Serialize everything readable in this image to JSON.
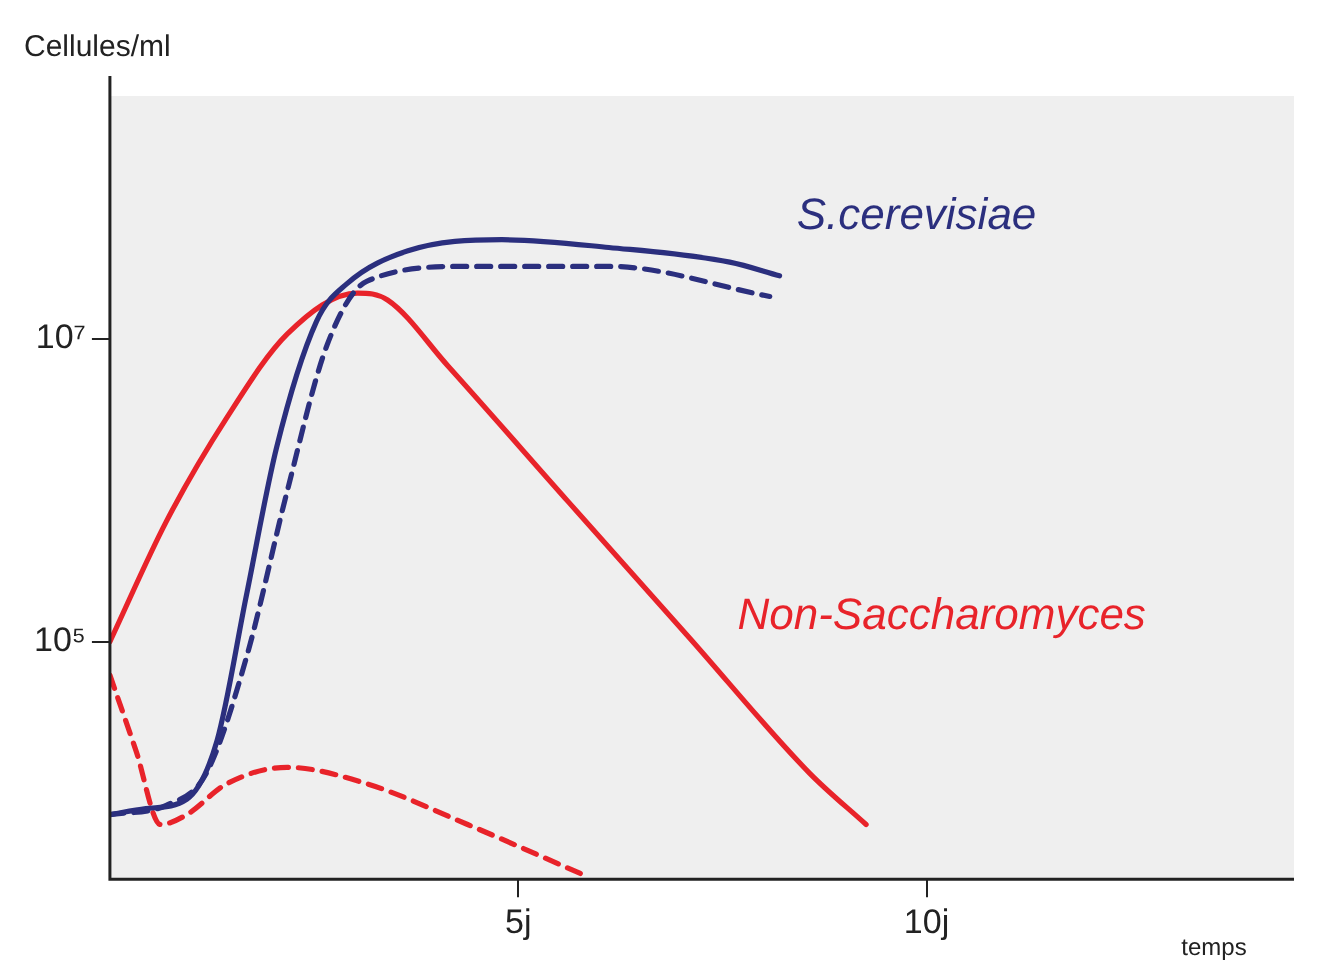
{
  "chart_data": {
    "type": "line",
    "ylabel": "Cellules/ml",
    "xlabel": "temps",
    "log": "y",
    "xlim": [
      0,
      14.5
    ],
    "ylim": [
      2700,
      400000000
    ],
    "xticks": [
      {
        "value": 5,
        "label": "5j"
      },
      {
        "value": 10,
        "label": "10j"
      }
    ],
    "yticks": [
      {
        "value": 100000,
        "label": "10⁵"
      },
      {
        "value": 10000000,
        "label": "10⁷"
      }
    ],
    "grid": false,
    "legend": false,
    "marker": "none",
    "series": [
      {
        "name": "S.cerevisiae",
        "color": "#2b2f7e",
        "line_style": "solid",
        "x": [
          0,
          0.44,
          0.94,
          1.31,
          1.67,
          2.04,
          2.53,
          2.9,
          3.65,
          4.8,
          6.11,
          7.59,
          8.2
        ],
        "values": [
          7200,
          7900,
          9100,
          22000,
          200000,
          1900000,
          13000000,
          23000000,
          38000000,
          45000000,
          40000000,
          32000000,
          26000000
        ]
      },
      {
        "color": "#2b2f7e",
        "line_style": "dashed",
        "x": [
          0,
          0.69,
          1.18,
          1.67,
          2.17,
          2.66,
          3.15,
          4.38,
          6.11,
          8.08
        ],
        "values": [
          7200,
          8300,
          13500,
          78000,
          980000,
          9100000,
          24000000,
          30000000,
          30000000,
          19000000
        ]
      },
      {
        "name": "Non-Saccharomyces",
        "color": "#e8232a",
        "line_style": "solid",
        "x": [
          0,
          0.69,
          1.43,
          2.17,
          3.03,
          3.4,
          4.14,
          5.62,
          7.09,
          8.57,
          9.26
        ],
        "values": [
          100000,
          620000,
          3000000,
          10700000,
          20000000,
          18000000,
          6600000,
          830000,
          107000,
          13500,
          6200
        ]
      },
      {
        "color": "#e8232a",
        "line_style": "dashed",
        "x": [
          0,
          0.32,
          0.62,
          0.94,
          1.43,
          2.17,
          3.15,
          4.38,
          5.79
        ],
        "values": [
          60000,
          19000,
          6200,
          7200,
          11500,
          14800,
          11500,
          6200,
          2900
        ]
      }
    ]
  }
}
